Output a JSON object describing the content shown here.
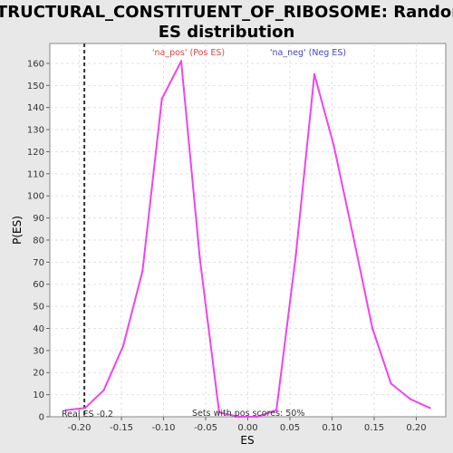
{
  "chart_data": {
    "type": "line",
    "title_line1": "STRUCTURAL_CONSTITUENT_OF_RIBOSOME: Random",
    "title_line2": "ES distribution",
    "xlabel": "ES",
    "ylabel": "P(ES)",
    "xlim": [
      -0.235,
      0.235
    ],
    "ylim": [
      0,
      169
    ],
    "grid": true,
    "x_ticks": [
      -0.2,
      -0.15,
      -0.1,
      -0.05,
      0.0,
      0.05,
      0.1,
      0.15,
      0.2
    ],
    "x_tick_labels": [
      "-0.20",
      "-0.15",
      "-0.10",
      "-0.05",
      "0.00",
      "0.05",
      "0.10",
      "0.15",
      "0.20"
    ],
    "y_ticks": [
      0,
      10,
      20,
      30,
      40,
      50,
      60,
      70,
      80,
      90,
      100,
      110,
      120,
      130,
      140,
      150,
      160
    ],
    "series": [
      {
        "color": "#ee44ee",
        "x": [
          -0.216,
          -0.193,
          -0.171,
          -0.148,
          -0.125,
          -0.102,
          -0.079,
          -0.057,
          -0.034,
          -0.011,
          0.011,
          0.034,
          0.057,
          0.079,
          0.102,
          0.125,
          0.148,
          0.17,
          0.193,
          0.216
        ],
        "y": [
          3,
          4,
          12,
          32,
          66,
          144,
          161,
          72,
          2,
          0,
          0,
          3,
          73,
          155,
          123,
          82,
          40,
          15,
          8,
          4
        ]
      }
    ],
    "real_es": -0.194,
    "annotations": {
      "pos_label": "'na_pos' (Pos ES)",
      "neg_label": "'na_neg' (Neg ES)",
      "pos_color": "#dd4444",
      "neg_color": "#4444cc",
      "real_es_label": "Real ES -0.2",
      "sets_label": "Sets with pos scores: 50%"
    }
  }
}
